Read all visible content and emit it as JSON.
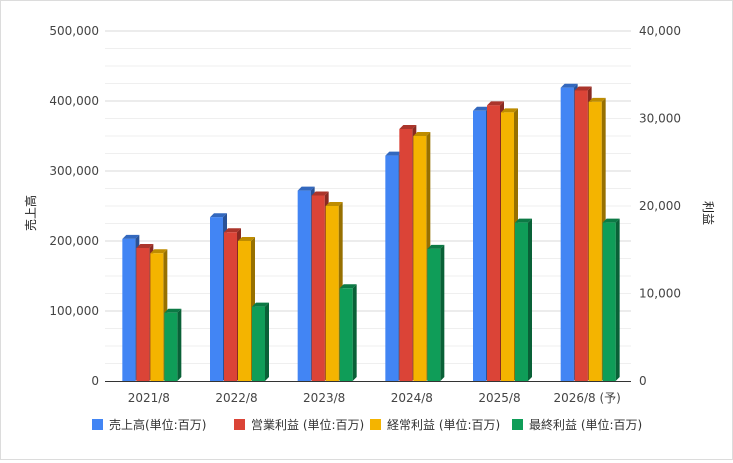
{
  "chart_data": {
    "type": "bar",
    "title": "",
    "categories": [
      "2021/8",
      "2022/8",
      "2023/8",
      "2024/8",
      "2025/8",
      "2026/8 (予)"
    ],
    "left_axis": {
      "label": "売上高",
      "ylim": [
        0,
        500000
      ],
      "ticks": [
        "0",
        "100,000",
        "200,000",
        "300,000",
        "400,000",
        "500,000"
      ]
    },
    "right_axis": {
      "label": "利益",
      "ylim": [
        0,
        40000
      ],
      "ticks": [
        "0",
        "10,000",
        "20,000",
        "30,000",
        "40,000"
      ]
    },
    "series": [
      {
        "name": "売上高(単位:百万)",
        "axis": "left",
        "color": "#4285f4",
        "values": [
          203000,
          234000,
          272000,
          322000,
          386000,
          419000
        ]
      },
      {
        "name": "営業利益 (単位:百万)",
        "axis": "right",
        "color": "#db4437",
        "values": [
          15200,
          17000,
          21200,
          28800,
          31500,
          33200
        ]
      },
      {
        "name": "経常利益 (単位:百万)",
        "axis": "right",
        "color": "#f4b400",
        "values": [
          14600,
          16000,
          20000,
          28000,
          30700,
          31900
        ]
      },
      {
        "name": "最終利益 (単位:百万)",
        "axis": "right",
        "color": "#0f9d58",
        "values": [
          7800,
          8500,
          10600,
          15100,
          18100,
          18100
        ]
      }
    ],
    "grid": true,
    "legend_position": "bottom"
  }
}
